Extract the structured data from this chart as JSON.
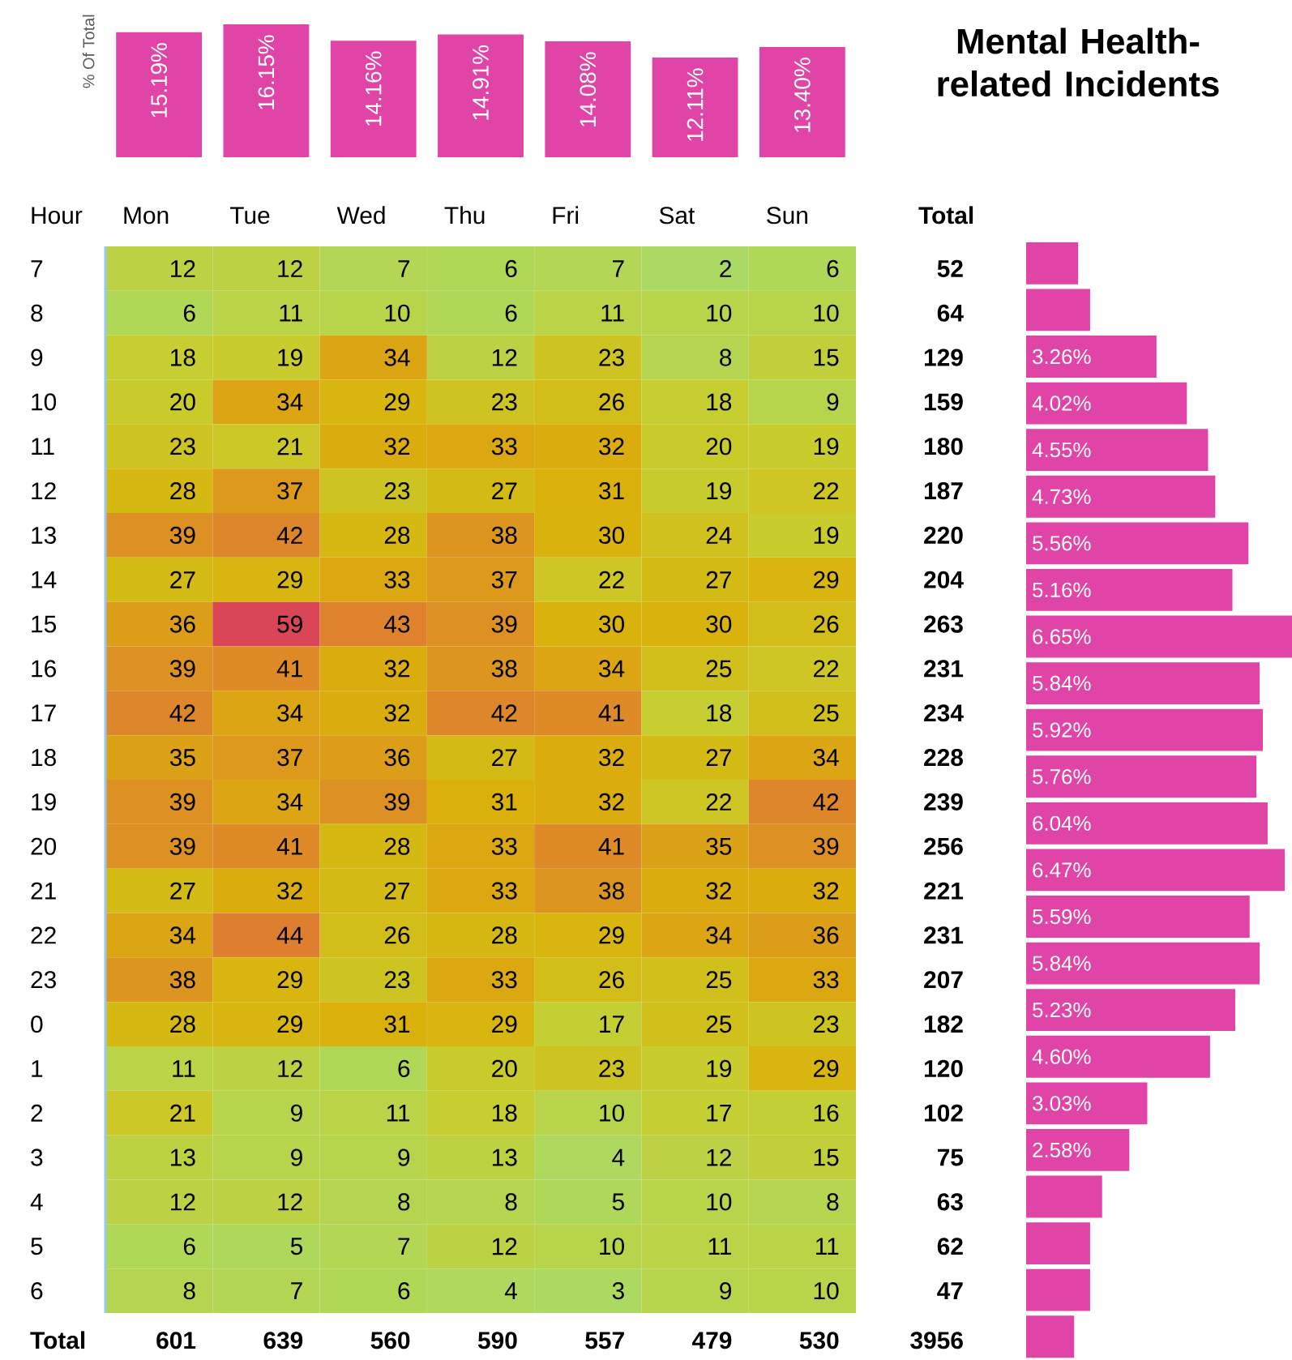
{
  "chart_data": [
    {
      "type": "bar",
      "ylabel": "% Of Total",
      "categories": [
        null,
        null,
        null,
        null,
        null,
        null,
        null
      ],
      "values": [
        15.19,
        16.15,
        14.16,
        14.91,
        14.08,
        12.11,
        13.4
      ],
      "value_labels": [
        "15.19%",
        "16.15%",
        "14.16%",
        "14.91%",
        "14.08%",
        "12.11%",
        "13.40%"
      ],
      "color": "#e044a7"
    },
    {
      "type": "heatmap",
      "ylabel": "Hour",
      "categories": [
        "Mon",
        "Tue",
        "Wed",
        "Thu",
        "Fri",
        "Sat",
        "Sun"
      ],
      "y_categories": [
        "7",
        "8",
        "9",
        "10",
        "11",
        "12",
        "13",
        "14",
        "15",
        "16",
        "17",
        "18",
        "19",
        "20",
        "21",
        "22",
        "23",
        "0",
        "1",
        "2",
        "3",
        "4",
        "5",
        "6"
      ],
      "y2_categories": [
        "52",
        "64",
        "129",
        "159",
        "180",
        "187",
        "220",
        "204",
        "263",
        "231",
        "234",
        "228",
        "239",
        "256",
        "221",
        "231",
        "207",
        "182",
        "120",
        "102",
        "75",
        "63",
        "62",
        "47"
      ],
      "cells": [
        [
          12,
          12,
          7,
          6,
          7,
          2,
          6
        ],
        [
          6,
          11,
          10,
          6,
          11,
          10,
          10
        ],
        [
          18,
          19,
          34,
          12,
          23,
          8,
          15
        ],
        [
          20,
          34,
          29,
          23,
          26,
          18,
          9
        ],
        [
          23,
          21,
          32,
          33,
          32,
          20,
          19
        ],
        [
          28,
          37,
          23,
          27,
          31,
          19,
          22
        ],
        [
          39,
          42,
          28,
          38,
          30,
          24,
          19
        ],
        [
          27,
          29,
          33,
          37,
          22,
          27,
          29
        ],
        [
          36,
          59,
          43,
          39,
          30,
          30,
          26
        ],
        [
          39,
          41,
          32,
          38,
          34,
          25,
          22
        ],
        [
          42,
          34,
          32,
          42,
          41,
          18,
          25
        ],
        [
          35,
          37,
          36,
          27,
          32,
          27,
          34
        ],
        [
          39,
          34,
          39,
          31,
          32,
          22,
          42
        ],
        [
          39,
          41,
          28,
          33,
          41,
          35,
          39
        ],
        [
          27,
          32,
          27,
          33,
          38,
          32,
          32
        ],
        [
          34,
          44,
          26,
          28,
          29,
          34,
          36
        ],
        [
          38,
          29,
          23,
          33,
          26,
          25,
          33
        ],
        [
          28,
          29,
          31,
          29,
          17,
          25,
          23
        ],
        [
          11,
          12,
          6,
          20,
          23,
          19,
          29
        ],
        [
          21,
          9,
          11,
          18,
          10,
          17,
          16
        ],
        [
          13,
          9,
          9,
          13,
          4,
          12,
          15
        ],
        [
          12,
          12,
          8,
          8,
          5,
          10,
          8
        ],
        [
          6,
          5,
          7,
          12,
          10,
          11,
          11
        ],
        [
          8,
          7,
          6,
          4,
          3,
          9,
          10
        ]
      ],
      "data_labels": true,
      "annotations": [
        "Total",
        "Total",
        "601",
        "639",
        "560",
        "590",
        "557",
        "479",
        "530",
        "3956"
      ]
    },
    {
      "type": "bar",
      "orientation": "horizontal",
      "title": "Mental Health-related Incidents",
      "categories": [
        null,
        null,
        null,
        null,
        null,
        null,
        null,
        null,
        null,
        null,
        null,
        null,
        null,
        null,
        null,
        null,
        null,
        null,
        null,
        null,
        null,
        null,
        null,
        null
      ],
      "values": [
        1.3,
        1.6,
        3.26,
        4.02,
        4.55,
        4.73,
        5.56,
        5.16,
        6.65,
        5.84,
        5.92,
        5.76,
        6.04,
        6.47,
        5.59,
        5.84,
        5.23,
        4.6,
        3.03,
        2.58,
        1.9,
        1.6,
        1.6,
        1.2
      ],
      "value_labels": [
        null,
        null,
        "3.26%",
        "4.02%",
        "4.55%",
        "4.73%",
        "5.56%",
        "5.16%",
        "6.65%",
        "5.84%",
        "5.92%",
        "5.76%",
        "6.04%",
        "6.47%",
        "5.59%",
        "5.84%",
        "5.23%",
        "4.60%",
        "3.03%",
        "2.58%",
        null,
        null,
        null,
        null
      ],
      "color": "#e044a7"
    }
  ]
}
